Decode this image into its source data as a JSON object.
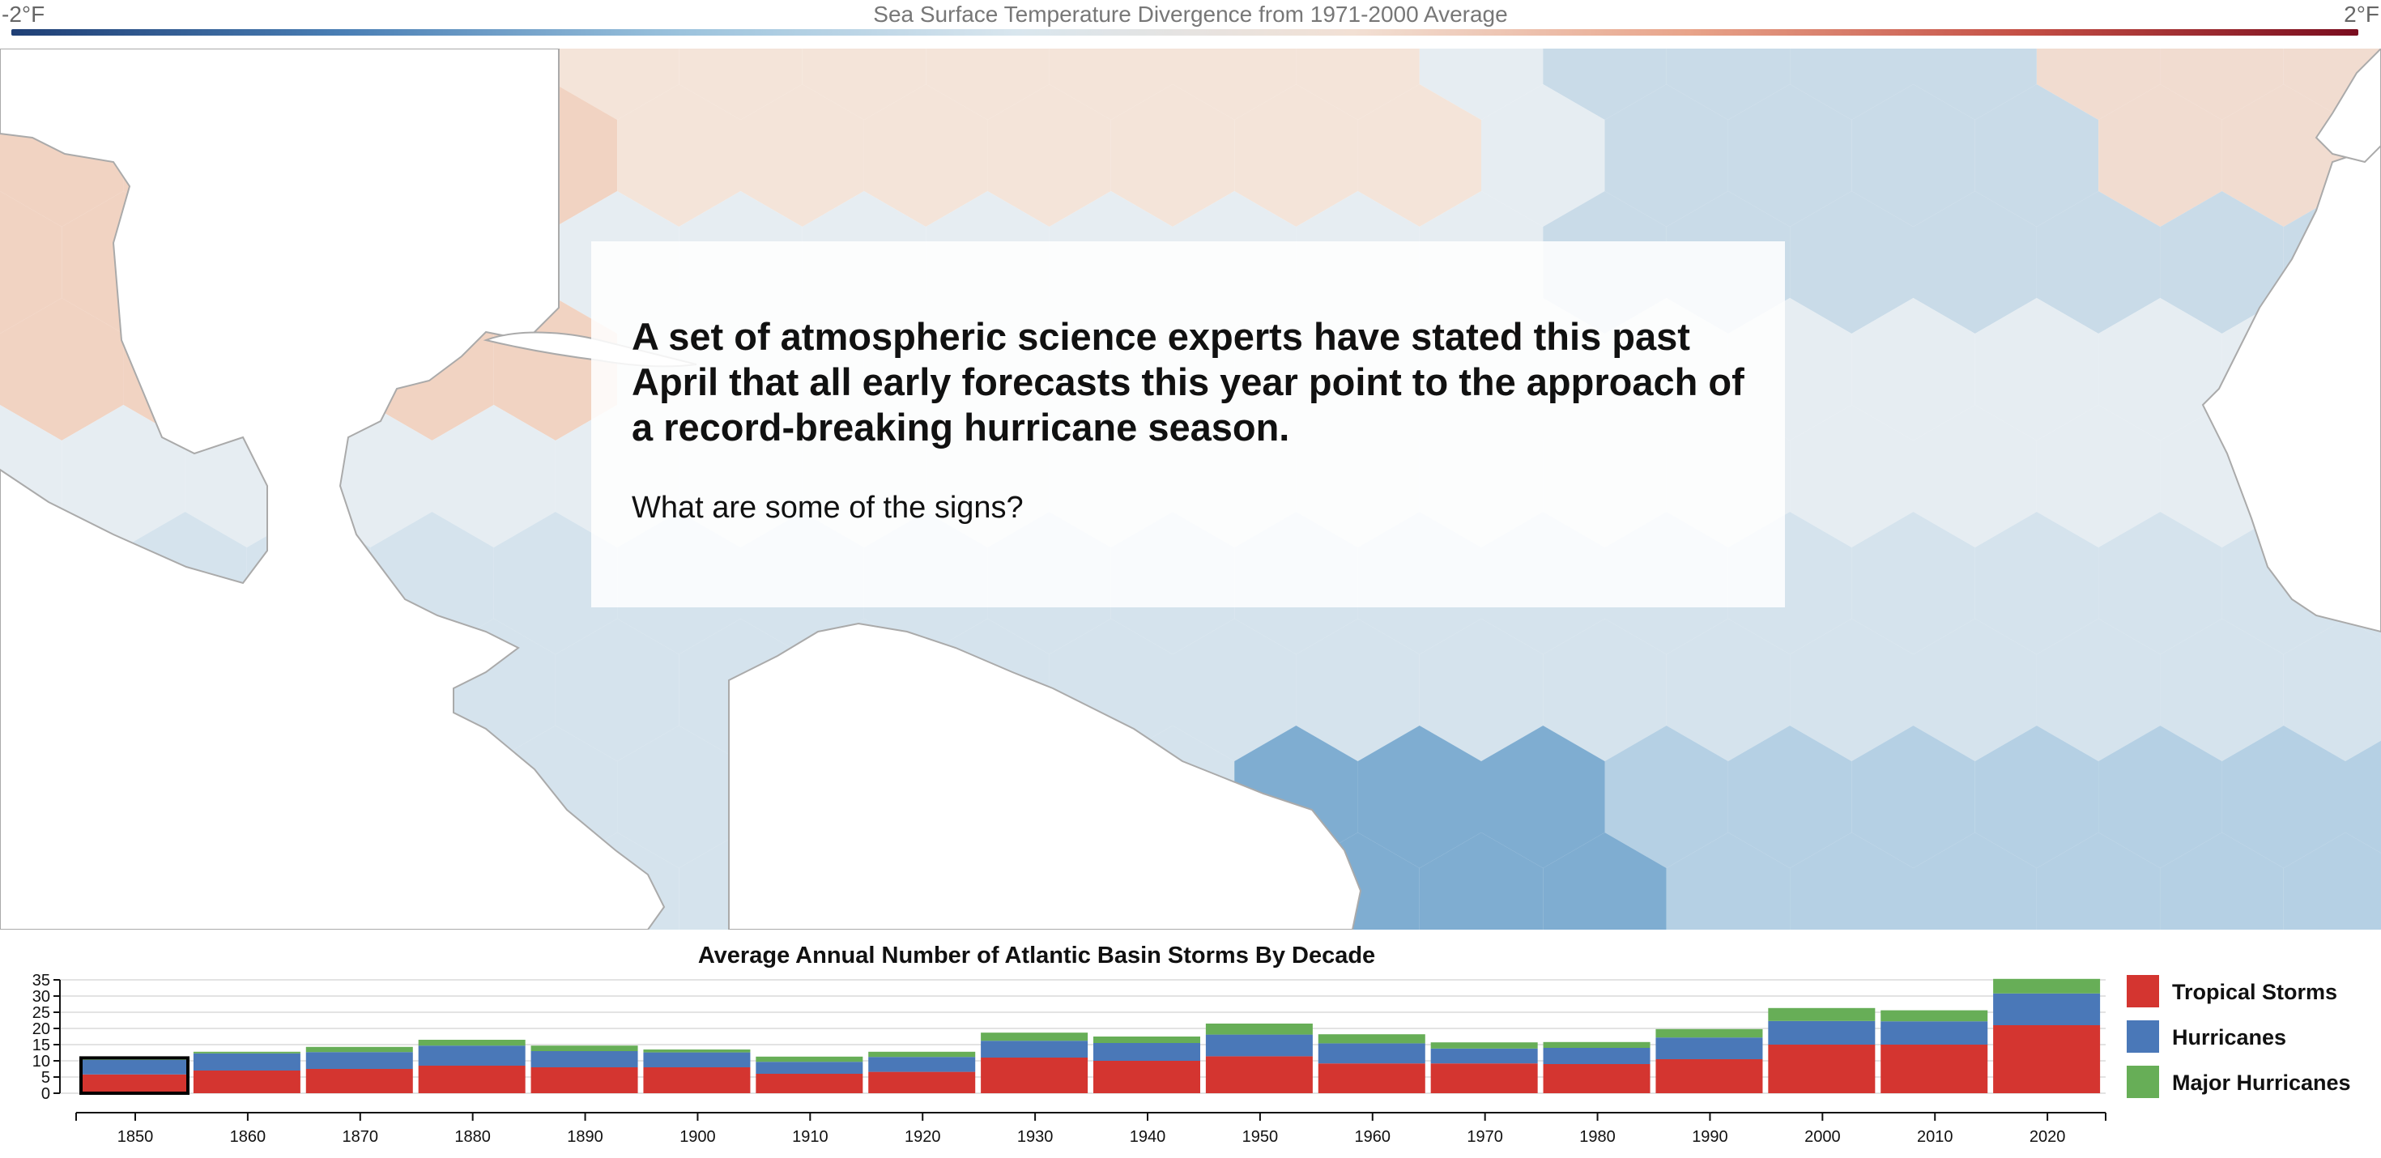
{
  "scale": {
    "min_label": "-2°F",
    "max_label": "2°F",
    "title": "Sea Surface Temperature Divergence from 1971-2000 Average",
    "colors": [
      "#1f3f75",
      "#4a7fb5",
      "#9cc3dd",
      "#d9e6ee",
      "#f2e0d4",
      "#e8a48a",
      "#c44f45",
      "#7a0d1f"
    ]
  },
  "story": {
    "headline": "A set of atmospheric science experts have stated this past April that all early forecasts this year point to the approach of a record-breaking hurricane season.",
    "subtext": "What are some of the signs?"
  },
  "chart_data": {
    "type": "bar",
    "stacked": true,
    "title": "Average Annual Number of Atlantic Basin Storms By Decade",
    "categories": [
      "1850",
      "1860",
      "1870",
      "1880",
      "1890",
      "1900",
      "1910",
      "1920",
      "1930",
      "1940",
      "1950",
      "1960",
      "1970",
      "1980",
      "1990",
      "2000",
      "2010",
      "2020"
    ],
    "series": [
      {
        "name": "Tropical Storms",
        "color": "#d43530",
        "values": [
          5.8,
          7,
          7.5,
          8.5,
          8,
          8,
          6,
          6.6,
          11,
          10,
          11.4,
          9.2,
          9.2,
          9,
          10.5,
          15,
          15,
          21
        ]
      },
      {
        "name": "Hurricanes",
        "color": "#4a78b8",
        "values": [
          4.5,
          5.3,
          5.2,
          6.2,
          5,
          4.6,
          3.7,
          4.6,
          5.2,
          5.5,
          6.7,
          6.2,
          4.6,
          5,
          6.7,
          7.3,
          7.2,
          9.8
        ]
      },
      {
        "name": "Major Hurricanes",
        "color": "#67ae57",
        "values": [
          0.6,
          0.5,
          1.6,
          1.8,
          1.7,
          0.9,
          1.6,
          1.6,
          2.5,
          2,
          3.4,
          2.8,
          1.9,
          1.8,
          2.6,
          4,
          3.4,
          4.5
        ]
      }
    ],
    "yticks": [
      "0",
      "5",
      "10",
      "15",
      "20",
      "25",
      "30",
      "35"
    ],
    "ylim": [
      0,
      35
    ],
    "highlighted": "1850",
    "legend_position": "right"
  }
}
